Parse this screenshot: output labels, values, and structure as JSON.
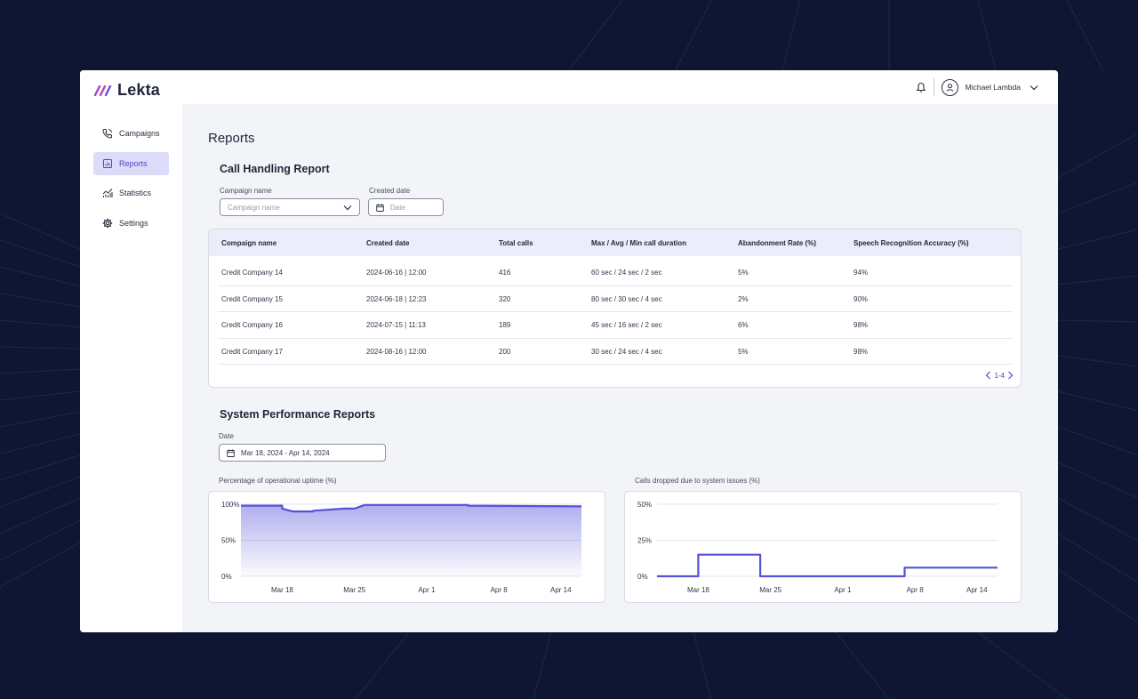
{
  "app": {
    "name": "Lekta"
  },
  "header": {
    "user_name": "Michael Lambda"
  },
  "sidebar": {
    "items": [
      {
        "label": "Campaigns",
        "icon": "phone-icon",
        "active": false
      },
      {
        "label": "Reports",
        "icon": "report-icon",
        "active": true
      },
      {
        "label": "Statistics",
        "icon": "statistics-icon",
        "active": false
      },
      {
        "label": "Settings",
        "icon": "gear-icon",
        "active": false
      }
    ]
  },
  "page": {
    "title": "Reports"
  },
  "call_report": {
    "title": "Call Handling Report",
    "filters": {
      "campaign_label": "Campaign name",
      "campaign_placeholder": "Campaign name",
      "date_label": "Created date",
      "date_placeholder": "Date"
    },
    "columns": [
      "Compaign name",
      "Created date",
      "Total calls",
      "Max / Avg / Min call duration",
      "Abandonment Rate (%)",
      "Speech Recognition Accuracy (%)"
    ],
    "rows": [
      [
        "Credit Company 14",
        "2024-06-16 | 12:00",
        "416",
        "60 sec / 24 sec / 2 sec",
        "5%",
        "94%"
      ],
      [
        "Credit Company 15",
        "2024-06-18 | 12:23",
        "320",
        "80 sec / 30 sec / 4 sec",
        "2%",
        "90%"
      ],
      [
        "Credit Company 16",
        "2024-07-15 | 11:13",
        "189",
        "45 sec / 16 sec / 2 sec",
        "6%",
        "98%"
      ],
      [
        "Credit Company 17",
        "2024-08-16 | 12:00",
        "200",
        "30 sec / 24 sec / 4 sec",
        "5%",
        "98%"
      ]
    ],
    "pagination": "1-4"
  },
  "performance": {
    "title": "System Performance Reports",
    "date_label": "Date",
    "date_value": "Mar 18, 2024 - Apr 14, 2024"
  },
  "colors": {
    "accent": "#4a46c8",
    "line": "#5552d9",
    "active_bg": "#dcdcfa"
  },
  "chart_data": [
    {
      "type": "area",
      "title": "Percentage of operational uptime (%)",
      "x_ticks": [
        "Mar 18",
        "Mar 25",
        "Apr 1",
        "Apr 8",
        "Apr 14"
      ],
      "y_ticks": [
        "100%",
        "50%",
        "0%"
      ],
      "ylim": [
        0,
        100
      ],
      "x_domain": [
        "2024-03-14",
        "2024-04-16"
      ],
      "series": [
        {
          "x": [
            "2024-03-14",
            "2024-03-18",
            "2024-03-18",
            "2024-03-19",
            "2024-03-21",
            "2024-03-21",
            "2024-03-24",
            "2024-03-25",
            "2024-03-26",
            "2024-04-05",
            "2024-04-05",
            "2024-04-16"
          ],
          "y": [
            98,
            98,
            94,
            90,
            90,
            91,
            94,
            94,
            99,
            99,
            98,
            97
          ]
        }
      ]
    },
    {
      "type": "line",
      "title": "Calls dropped due to system issues (%)",
      "x_ticks": [
        "Mar 18",
        "Mar 25",
        "Apr 1",
        "Apr 8",
        "Apr 14"
      ],
      "y_ticks": [
        "50%",
        "25%",
        "0%"
      ],
      "ylim": [
        0,
        50
      ],
      "x_domain": [
        "2024-03-14",
        "2024-04-16"
      ],
      "series": [
        {
          "x": [
            "2024-03-14",
            "2024-03-18",
            "2024-03-18",
            "2024-03-24",
            "2024-03-24",
            "2024-04-07",
            "2024-04-07",
            "2024-04-16"
          ],
          "y": [
            0,
            0,
            15,
            15,
            0,
            0,
            6,
            6
          ]
        }
      ]
    }
  ]
}
